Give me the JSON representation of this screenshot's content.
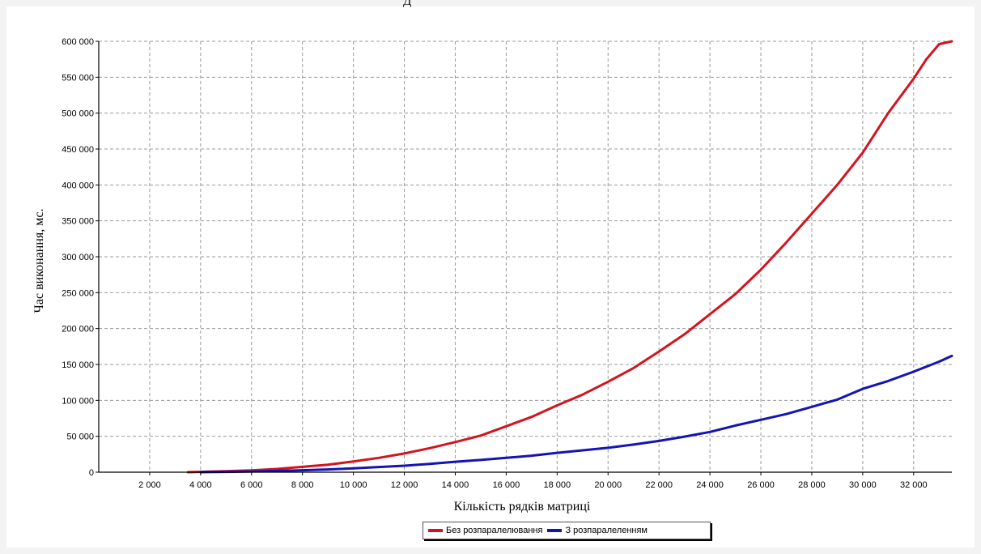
{
  "caption": "Д",
  "colors": {
    "series1": "#d3141f",
    "series2": "#1414b4",
    "grid": "#9a9a9a",
    "axis": "#000000"
  },
  "chart_data": {
    "type": "line",
    "title": "",
    "xlabel": "Кількість рядків матриці",
    "ylabel": "Час виконання, мс.",
    "xlim": [
      0,
      33500
    ],
    "ylim": [
      0,
      600000
    ],
    "xticks": [
      2000,
      4000,
      6000,
      8000,
      10000,
      12000,
      14000,
      16000,
      18000,
      20000,
      22000,
      24000,
      26000,
      28000,
      30000,
      32000
    ],
    "xtick_labels": [
      "2 000",
      "4 000",
      "6 000",
      "8 000",
      "10 000",
      "12 000",
      "14 000",
      "16 000",
      "18 000",
      "20 000",
      "22 000",
      "24 000",
      "26 000",
      "28 000",
      "30 000",
      "32 000"
    ],
    "yticks": [
      0,
      50000,
      100000,
      150000,
      200000,
      250000,
      300000,
      350000,
      400000,
      450000,
      500000,
      550000,
      600000
    ],
    "ytick_labels": [
      "0",
      "50 000",
      "100 000",
      "150 000",
      "200 000",
      "250 000",
      "300 000",
      "350 000",
      "400 000",
      "450 000",
      "500 000",
      "550 000",
      "600 000"
    ],
    "grid": true,
    "legend": "bottom-center",
    "series": [
      {
        "name": "Без розпаралелювання",
        "color": "#d3141f",
        "x": [
          3500,
          4000,
          5000,
          6000,
          7000,
          8000,
          9000,
          10000,
          11000,
          12000,
          13000,
          14000,
          15000,
          16000,
          17000,
          18000,
          19000,
          20000,
          21000,
          22000,
          23000,
          24000,
          25000,
          26000,
          27000,
          28000,
          29000,
          30000,
          31000,
          32000,
          32500,
          33000,
          33500
        ],
        "y": [
          0,
          500,
          1500,
          2500,
          4500,
          7500,
          10500,
          15000,
          20000,
          26000,
          33500,
          42000,
          51000,
          64000,
          77000,
          93000,
          108000,
          126000,
          145000,
          168000,
          192000,
          220000,
          248000,
          282000,
          320000,
          360000,
          400000,
          445000,
          500000,
          548000,
          575000,
          596000,
          600000
        ]
      },
      {
        "name": "З розпаралеленням",
        "color": "#1414b4",
        "x": [
          4000,
          5000,
          6000,
          7000,
          8000,
          9000,
          10000,
          11000,
          12000,
          13000,
          14000,
          15000,
          16000,
          17000,
          18000,
          19000,
          20000,
          21000,
          22000,
          23000,
          24000,
          25000,
          26000,
          27000,
          28000,
          29000,
          30000,
          31000,
          32000,
          33000,
          33500
        ],
        "y": [
          0,
          500,
          1000,
          1800,
          2700,
          3800,
          5300,
          7200,
          9000,
          11500,
          14500,
          17000,
          20000,
          23000,
          27000,
          30500,
          34000,
          38500,
          43500,
          49500,
          56000,
          65000,
          73000,
          81000,
          91000,
          101000,
          116000,
          127000,
          140000,
          154000,
          162000
        ]
      }
    ]
  }
}
